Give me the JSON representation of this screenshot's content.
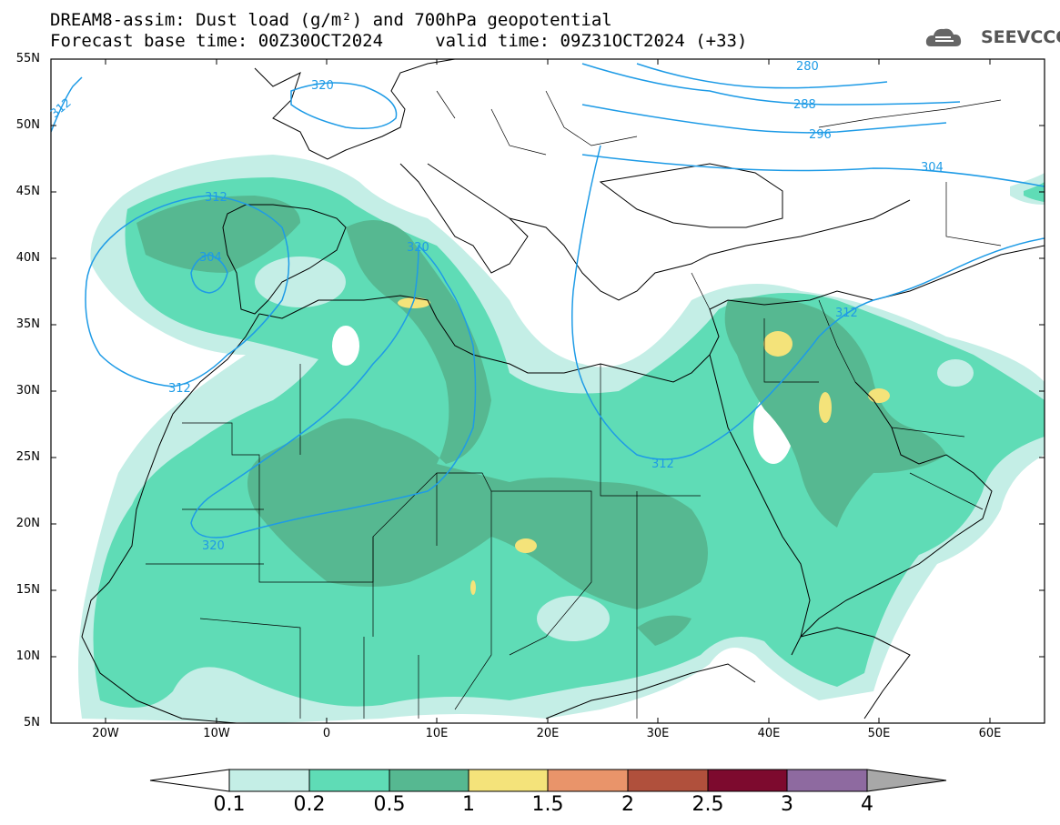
{
  "title": {
    "line1": "DREAM8-assim: Dust load (g/m²) and 700hPa geopotential",
    "line2": "Forecast base time: 00Z30OCT2024     valid time: 09Z31OCT2024 (+33)"
  },
  "logo": {
    "text": "SEEVCCC",
    "icon": "cloud-icon"
  },
  "axes": {
    "lat_labels": [
      "55N",
      "50N",
      "45N",
      "40N",
      "35N",
      "30N",
      "25N",
      "20N",
      "15N",
      "10N",
      "5N"
    ],
    "lon_labels": [
      "20W",
      "10W",
      "0",
      "10E",
      "20E",
      "30E",
      "40E",
      "50E",
      "60E"
    ]
  },
  "contour_labels": {
    "c280": "280",
    "c288": "288",
    "c296": "296",
    "c304a": "304",
    "c304b": "304",
    "c312a": "312",
    "c312b": "312",
    "c312c": "312",
    "c312d": "312",
    "c312e": "312",
    "c320a": "320",
    "c320b": "320",
    "c320c": "320"
  },
  "colorbar": {
    "levels": [
      "0.1",
      "0.2",
      "0.5",
      "1",
      "1.5",
      "2",
      "2.5",
      "3",
      "4"
    ],
    "colors": [
      "#c4eee6",
      "#5fdcb6",
      "#56b891",
      "#f4e37a",
      "#e9946a",
      "#b0503c",
      "#7d0a2e",
      "#8e6aa0",
      "#a8a8a8"
    ],
    "under_color": "#ffffff",
    "over_color": "#a8a8a8"
  },
  "contour_color": "#1e9be6"
}
